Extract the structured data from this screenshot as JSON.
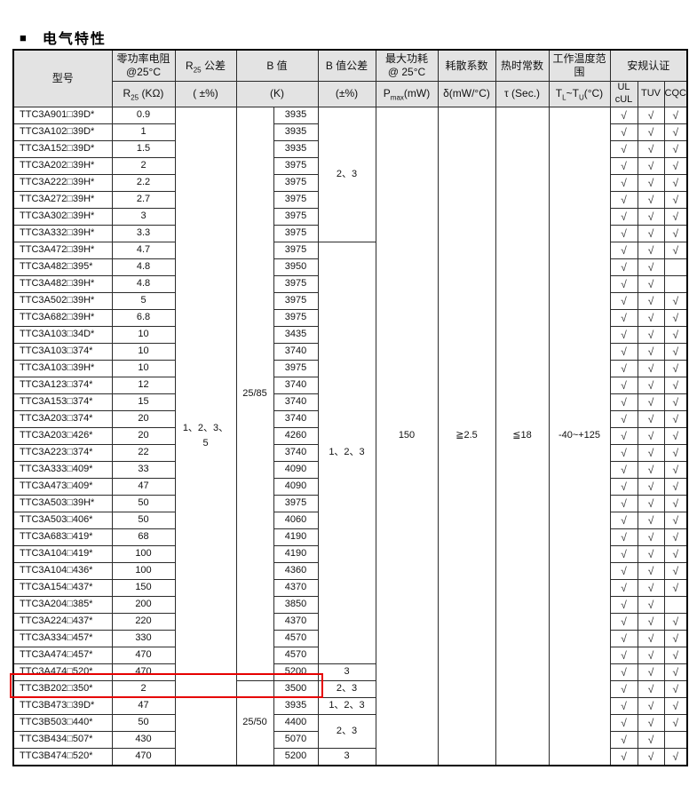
{
  "title": {
    "bullet": "■",
    "text": "电气特性"
  },
  "highlight": {
    "color": "#e60000",
    "row_model": "TTC3B202□350*"
  },
  "table": {
    "check_mark": "√",
    "header_bg": "#e3e3e3",
    "headers": {
      "model": "型号",
      "zero_power_line1": "零功率电阻",
      "zero_power_line2": "@25°C",
      "r25_tol": {
        "pre": "R",
        "sub": "25",
        "post": " 公差"
      },
      "b_value": "B 值",
      "b_tolerance": "B 值公差",
      "max_power_line1": "最大功耗",
      "max_power_line2": "@ 25°C",
      "dissipation": "耗散系数",
      "thermal_time": "热时常数",
      "temp_range": "工作温度范围",
      "certification": "安规认证"
    },
    "units": {
      "r25": {
        "pre": "R",
        "sub": "25",
        "post": " (KΩ)"
      },
      "r25_tol": "( ±%)",
      "b": "(K)",
      "b_tol": "(±%)",
      "pmax": {
        "pre": "P",
        "sub": "max",
        "post": "(mW)"
      },
      "dissipation": "δ(mW/°C)",
      "thermal_time": "τ (Sec.)",
      "temp_range": {
        "pre": "T",
        "sub1": "L",
        "mid": "~T",
        "sub2": "U",
        "post": "(°C)"
      },
      "ul_line1": "UL",
      "ul_line2": "cUL",
      "tuv": "TUV",
      "cqc": "CQC"
    },
    "merged_cells": {
      "r25_tolerance_lines": [
        "1、2、3、",
        "5"
      ],
      "pmax": "150",
      "dissipation": "≧2.5",
      "thermal_time": "≦18",
      "temp_range": "-40~+125"
    },
    "b_temp_spans": [
      {
        "start": 0,
        "span": 34,
        "label": "25/85"
      },
      {
        "start": 34,
        "span": 5,
        "label": "25/50"
      }
    ],
    "b_tol_spans": [
      {
        "start": 0,
        "span": 8,
        "label": "2、3"
      },
      {
        "start": 8,
        "span": 25,
        "label": "1、2、3"
      },
      {
        "start": 33,
        "span": 1,
        "label": "3"
      },
      {
        "start": 34,
        "span": 1,
        "label": "2、3"
      },
      {
        "start": 35,
        "span": 1,
        "label": "1、2、3"
      },
      {
        "start": 36,
        "span": 2,
        "label": "2、3"
      },
      {
        "start": 38,
        "span": 1,
        "label": "3"
      }
    ],
    "rows": [
      {
        "model": "TTC3A901□39D*",
        "r25": "0.9",
        "b": "3935",
        "ul": true,
        "tuv": true,
        "cqc": true
      },
      {
        "model": "TTC3A102□39D*",
        "r25": "1",
        "b": "3935",
        "ul": true,
        "tuv": true,
        "cqc": true
      },
      {
        "model": "TTC3A152□39D*",
        "r25": "1.5",
        "b": "3935",
        "ul": true,
        "tuv": true,
        "cqc": true
      },
      {
        "model": "TTC3A202□39H*",
        "r25": "2",
        "b": "3975",
        "ul": true,
        "tuv": true,
        "cqc": true
      },
      {
        "model": "TTC3A222□39H*",
        "r25": "2.2",
        "b": "3975",
        "ul": true,
        "tuv": true,
        "cqc": true
      },
      {
        "model": "TTC3A272□39H*",
        "r25": "2.7",
        "b": "3975",
        "ul": true,
        "tuv": true,
        "cqc": true
      },
      {
        "model": "TTC3A302□39H*",
        "r25": "3",
        "b": "3975",
        "ul": true,
        "tuv": true,
        "cqc": true
      },
      {
        "model": "TTC3A332□39H*",
        "r25": "3.3",
        "b": "3975",
        "ul": true,
        "tuv": true,
        "cqc": true
      },
      {
        "model": "TTC3A472□39H*",
        "r25": "4.7",
        "b": "3975",
        "ul": true,
        "tuv": true,
        "cqc": true
      },
      {
        "model": "TTC3A482□395*",
        "r25": "4.8",
        "b": "3950",
        "ul": true,
        "tuv": true,
        "cqc": false
      },
      {
        "model": "TTC3A482□39H*",
        "r25": "4.8",
        "b": "3975",
        "ul": true,
        "tuv": true,
        "cqc": false
      },
      {
        "model": "TTC3A502□39H*",
        "r25": "5",
        "b": "3975",
        "ul": true,
        "tuv": true,
        "cqc": true
      },
      {
        "model": "TTC3A682□39H*",
        "r25": "6.8",
        "b": "3975",
        "ul": true,
        "tuv": true,
        "cqc": true
      },
      {
        "model": "TTC3A103□34D*",
        "r25": "10",
        "b": "3435",
        "ul": true,
        "tuv": true,
        "cqc": true
      },
      {
        "model": "TTC3A103□374*",
        "r25": "10",
        "b": "3740",
        "ul": true,
        "tuv": true,
        "cqc": true
      },
      {
        "model": "TTC3A103□39H*",
        "r25": "10",
        "b": "3975",
        "ul": true,
        "tuv": true,
        "cqc": true
      },
      {
        "model": "TTC3A123□374*",
        "r25": "12",
        "b": "3740",
        "ul": true,
        "tuv": true,
        "cqc": true
      },
      {
        "model": "TTC3A153□374*",
        "r25": "15",
        "b": "3740",
        "ul": true,
        "tuv": true,
        "cqc": true
      },
      {
        "model": "TTC3A203□374*",
        "r25": "20",
        "b": "3740",
        "ul": true,
        "tuv": true,
        "cqc": true
      },
      {
        "model": "TTC3A203□426*",
        "r25": "20",
        "b": "4260",
        "ul": true,
        "tuv": true,
        "cqc": true
      },
      {
        "model": "TTC3A223□374*",
        "r25": "22",
        "b": "3740",
        "ul": true,
        "tuv": true,
        "cqc": true
      },
      {
        "model": "TTC3A333□409*",
        "r25": "33",
        "b": "4090",
        "ul": true,
        "tuv": true,
        "cqc": true
      },
      {
        "model": "TTC3A473□409*",
        "r25": "47",
        "b": "4090",
        "ul": true,
        "tuv": true,
        "cqc": true
      },
      {
        "model": "TTC3A503□39H*",
        "r25": "50",
        "b": "3975",
        "ul": true,
        "tuv": true,
        "cqc": true
      },
      {
        "model": "TTC3A503□406*",
        "r25": "50",
        "b": "4060",
        "ul": true,
        "tuv": true,
        "cqc": true
      },
      {
        "model": "TTC3A683□419*",
        "r25": "68",
        "b": "4190",
        "ul": true,
        "tuv": true,
        "cqc": true
      },
      {
        "model": "TTC3A104□419*",
        "r25": "100",
        "b": "4190",
        "ul": true,
        "tuv": true,
        "cqc": true
      },
      {
        "model": "TTC3A104□436*",
        "r25": "100",
        "b": "4360",
        "ul": true,
        "tuv": true,
        "cqc": true
      },
      {
        "model": "TTC3A154□437*",
        "r25": "150",
        "b": "4370",
        "ul": true,
        "tuv": true,
        "cqc": true
      },
      {
        "model": "TTC3A204□385*",
        "r25": "200",
        "b": "3850",
        "ul": true,
        "tuv": true,
        "cqc": false
      },
      {
        "model": "TTC3A224□437*",
        "r25": "220",
        "b": "4370",
        "ul": true,
        "tuv": true,
        "cqc": true
      },
      {
        "model": "TTC3A334□457*",
        "r25": "330",
        "b": "4570",
        "ul": true,
        "tuv": true,
        "cqc": true
      },
      {
        "model": "TTC3A474□457*",
        "r25": "470",
        "b": "4570",
        "ul": true,
        "tuv": true,
        "cqc": true
      },
      {
        "model": "TTC3A474□520*",
        "r25": "470",
        "b": "5200",
        "ul": true,
        "tuv": true,
        "cqc": true
      },
      {
        "model": "TTC3B202□350*",
        "r25": "2",
        "b": "3500",
        "ul": true,
        "tuv": true,
        "cqc": true
      },
      {
        "model": "TTC3B473□39D*",
        "r25": "47",
        "b": "3935",
        "ul": true,
        "tuv": true,
        "cqc": true
      },
      {
        "model": "TTC3B503□440*",
        "r25": "50",
        "b": "4400",
        "ul": true,
        "tuv": true,
        "cqc": true
      },
      {
        "model": "TTC3B434□507*",
        "r25": "430",
        "b": "5070",
        "ul": true,
        "tuv": true,
        "cqc": false
      },
      {
        "model": "TTC3B474□520*",
        "r25": "470",
        "b": "5200",
        "ul": true,
        "tuv": true,
        "cqc": true
      }
    ]
  }
}
